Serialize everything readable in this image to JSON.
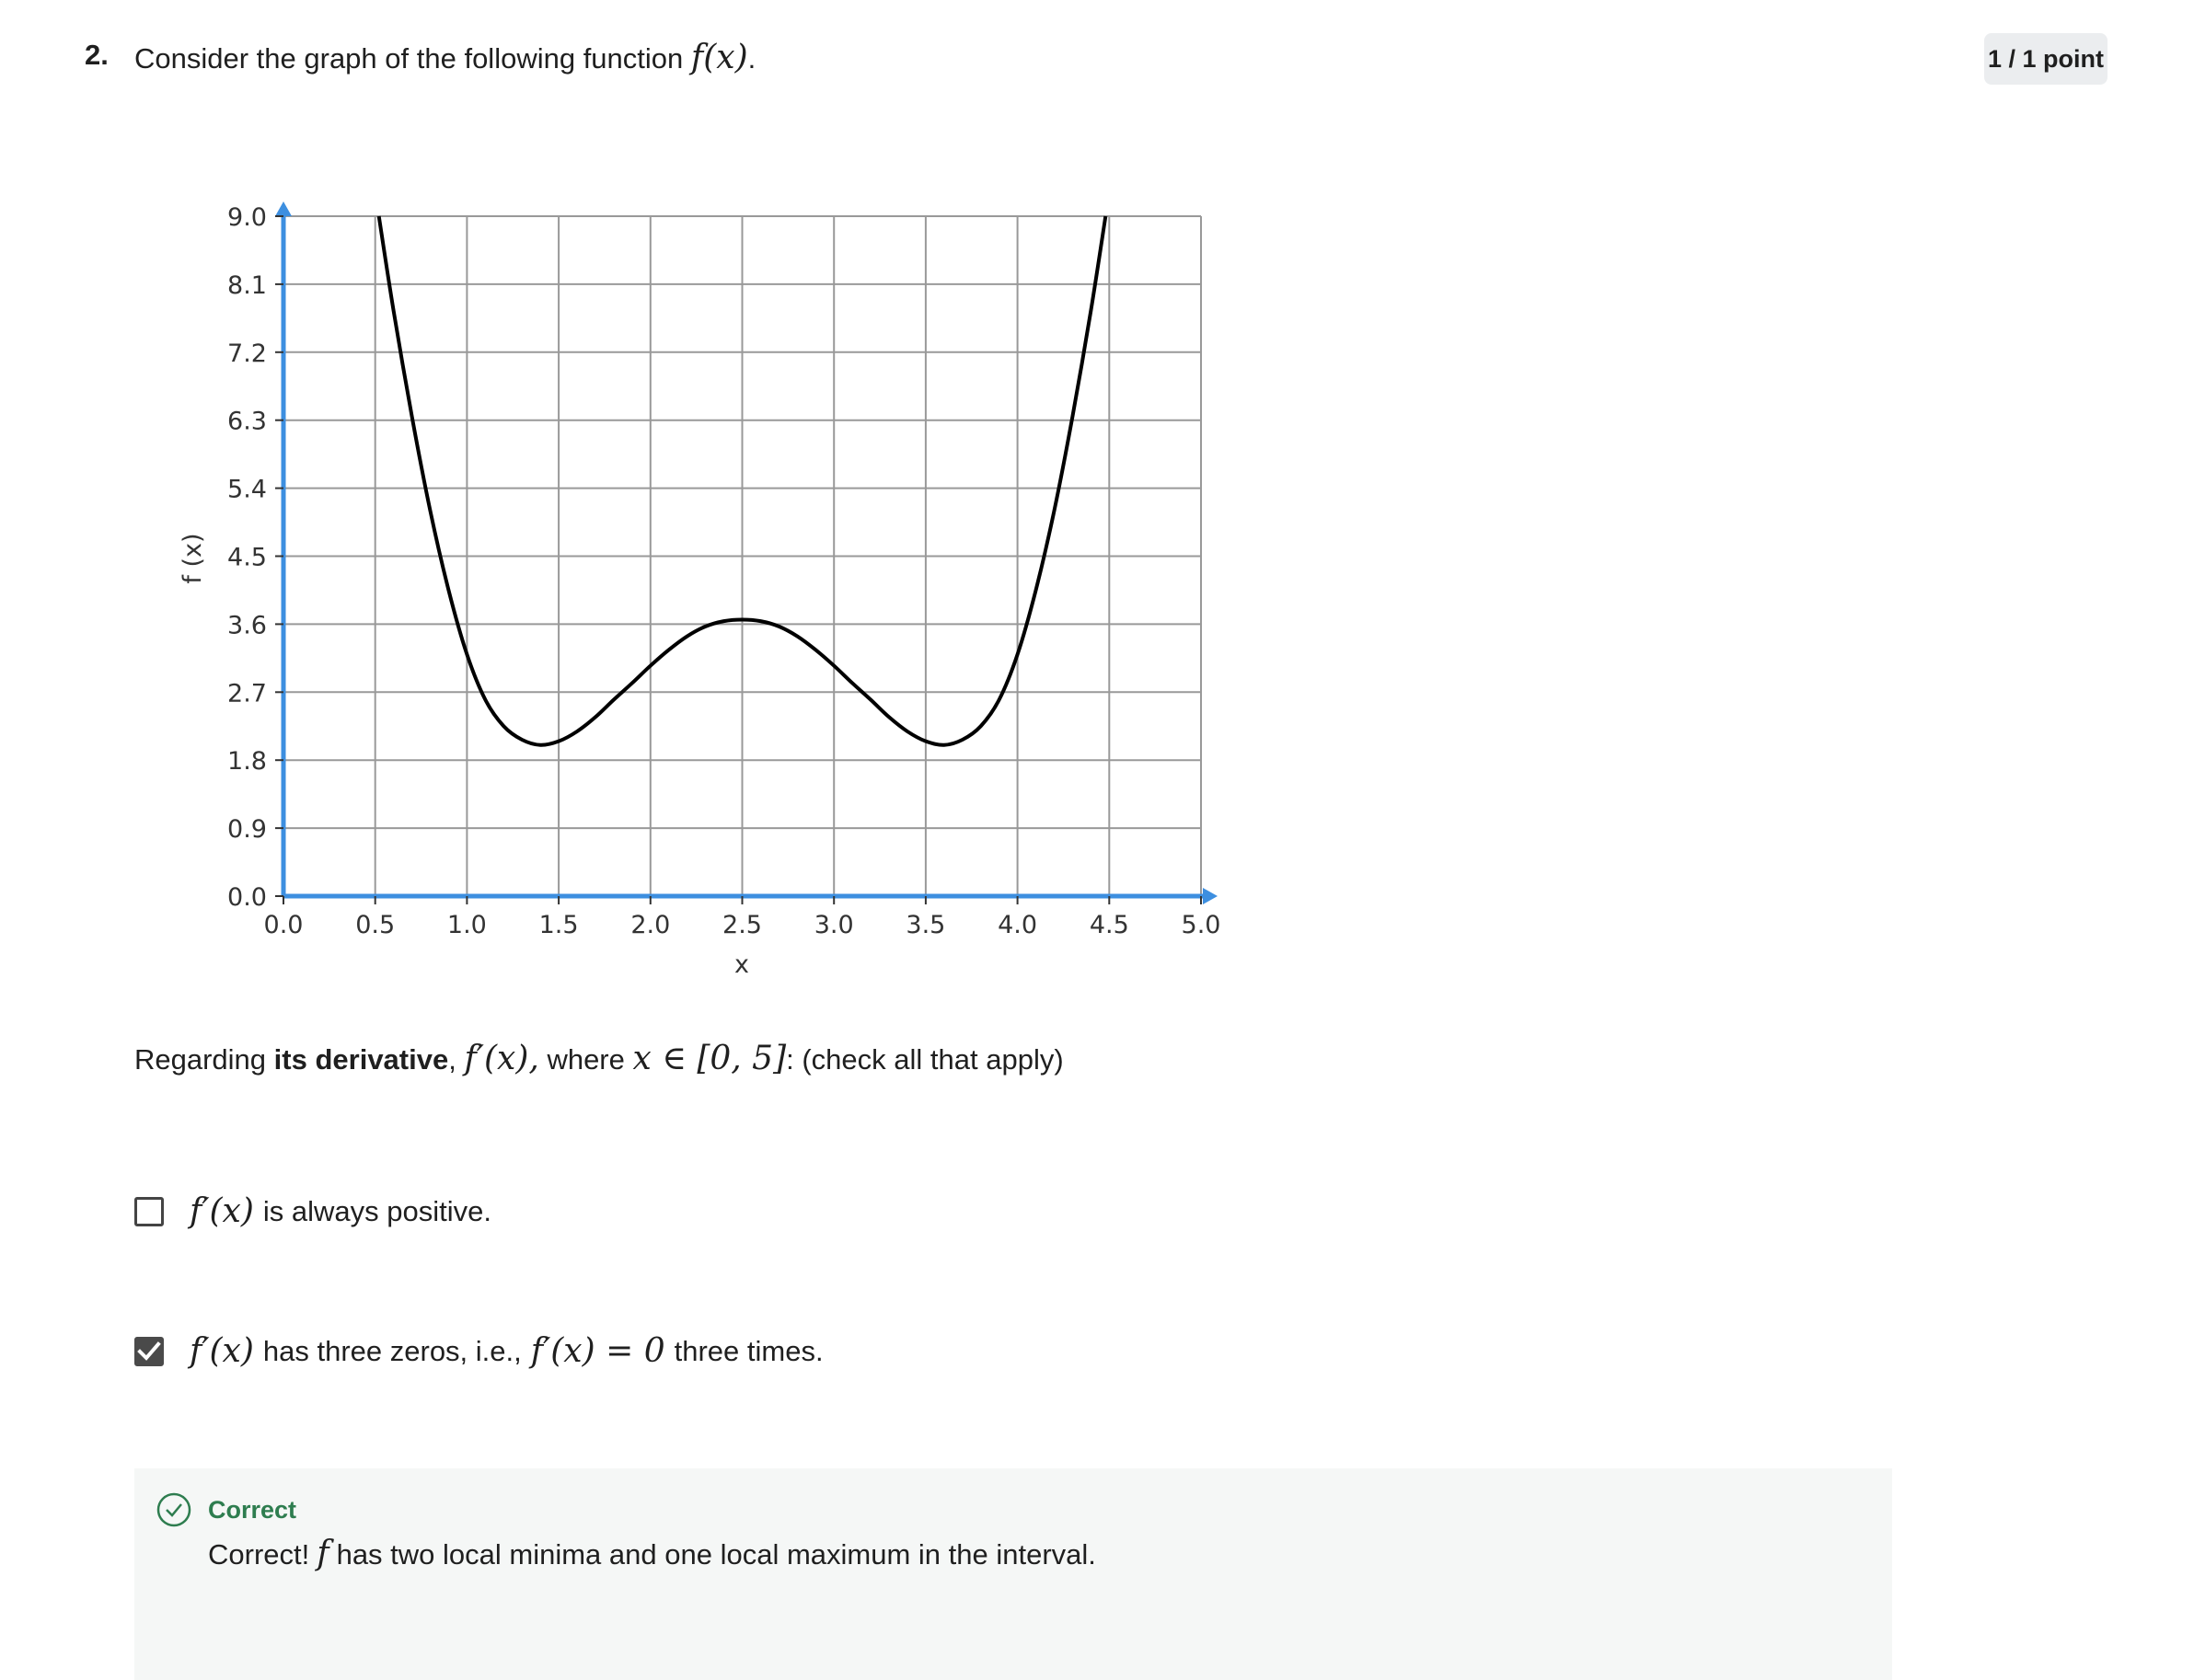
{
  "question": {
    "number": "2.",
    "text": "Consider the graph of the following function",
    "function_label": "f(x)",
    "points": "1 / 1 point"
  },
  "chart_data": {
    "type": "line",
    "xlabel": "x",
    "ylabel": "f (x)",
    "xlim": [
      0,
      5
    ],
    "ylim": [
      0,
      9
    ],
    "x_ticks": [
      "0.0",
      "0.5",
      "1.0",
      "1.5",
      "2.0",
      "2.5",
      "3.0",
      "3.5",
      "4.0",
      "4.5",
      "5.0"
    ],
    "y_ticks": [
      "0.0",
      "0.9",
      "1.8",
      "2.7",
      "3.6",
      "4.5",
      "5.4",
      "6.3",
      "7.2",
      "8.1",
      "9.0"
    ],
    "grid": true,
    "series": [
      {
        "x": [
          0.52,
          0.6,
          0.7,
          0.8,
          0.9,
          1.0,
          1.1,
          1.2,
          1.3,
          1.4,
          1.5,
          1.6,
          1.7,
          1.8,
          1.9,
          2.0,
          2.1,
          2.2,
          2.3,
          2.4,
          2.5,
          2.6,
          2.7,
          2.8,
          2.9,
          3.0,
          3.1,
          3.2,
          3.3,
          3.4,
          3.5,
          3.6,
          3.7,
          3.8,
          3.9,
          4.0,
          4.1,
          4.2,
          4.3,
          4.4,
          4.48
        ],
        "y": [
          9.0,
          7.75,
          6.35,
          5.1,
          4.05,
          3.2,
          2.6,
          2.25,
          2.07,
          2.0,
          2.05,
          2.18,
          2.37,
          2.6,
          2.82,
          3.05,
          3.26,
          3.44,
          3.57,
          3.64,
          3.66,
          3.64,
          3.57,
          3.44,
          3.26,
          3.05,
          2.82,
          2.6,
          2.37,
          2.18,
          2.05,
          2.0,
          2.07,
          2.25,
          2.6,
          3.2,
          4.05,
          5.1,
          6.35,
          7.75,
          9.0
        ],
        "color": "#000000"
      }
    ],
    "axis_color": "#3d8fe0"
  },
  "prompt": {
    "prefix": "Regarding",
    "bold": "its derivative",
    "comma": ",",
    "derivative": "f′(x),",
    "where": "where",
    "domain": "x ∈ [0, 5]",
    "suffix": ": (check all that apply)"
  },
  "options": [
    {
      "math": "f′(x)",
      "text": "is always positive.",
      "checked": false
    },
    {
      "math": "f′(x)",
      "text_a": "has three zeros, i.e.,",
      "math_b": "f′(x) = 0",
      "text_b": "three times.",
      "checked": true
    }
  ],
  "feedback": {
    "title": "Correct",
    "prefix": "Correct!",
    "math": "f",
    "text": "has two local minima and one local maximum in the interval."
  }
}
